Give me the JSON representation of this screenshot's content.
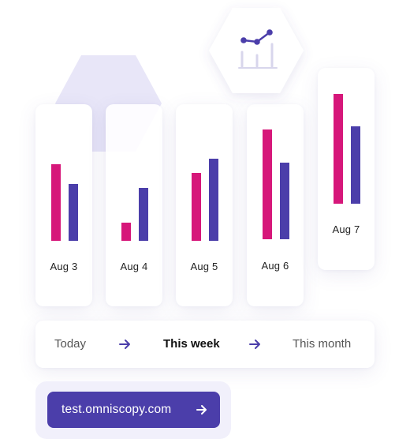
{
  "colors": {
    "series_a": "#d6177a",
    "series_b": "#4b3eaa",
    "accent": "#4b3eaa"
  },
  "icons": {
    "stats": "chart-hexagon-icon",
    "timeline_arrow": "arrow-right-icon",
    "url_arrow": "arrow-right-icon"
  },
  "chart_data": {
    "type": "bar",
    "categories": [
      "Aug 3",
      "Aug 4",
      "Aug 5",
      "Aug 6",
      "Aug 7"
    ],
    "series": [
      {
        "values": [
          97,
          23,
          86,
          139,
          139
        ]
      },
      {
        "values": [
          72,
          67,
          104,
          97,
          98
        ]
      }
    ]
  },
  "timeline": {
    "today": "Today",
    "this_week": "This week",
    "this_month": "This month"
  },
  "url": {
    "label": "test.omniscopy.com"
  }
}
